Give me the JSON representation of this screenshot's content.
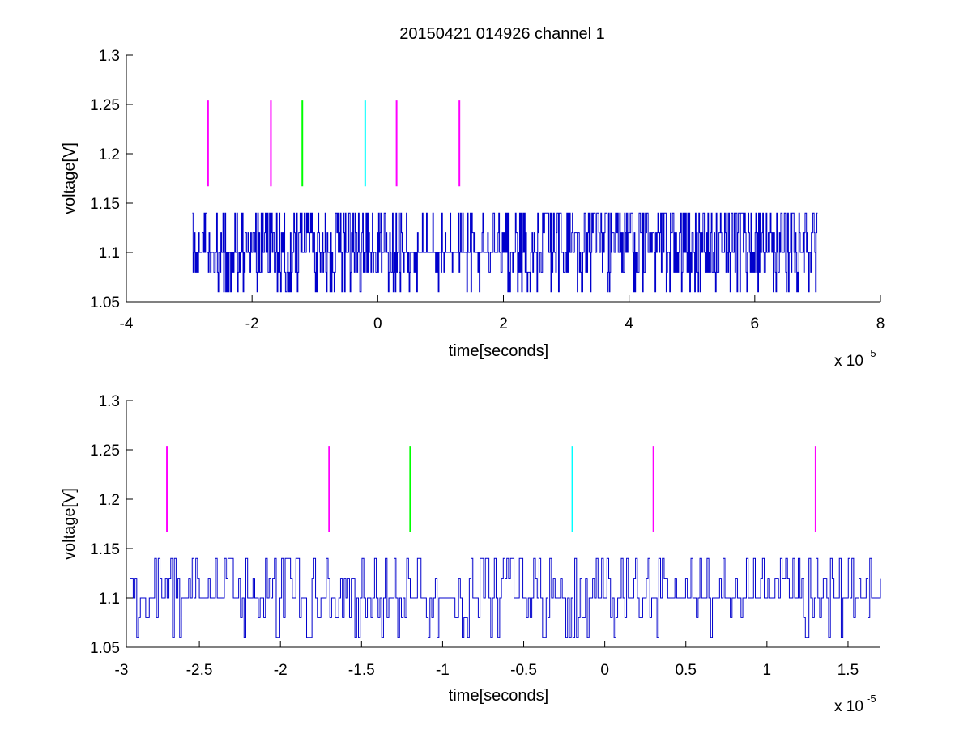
{
  "figure": {
    "title": "20150421 014926 channel 1"
  },
  "colors": {
    "signal": "#0000cc",
    "magenta": "#ff00ff",
    "green": "#00ff00",
    "cyan": "#00ffff",
    "axis": "#000000"
  },
  "chart_data": [
    {
      "type": "line",
      "title": "20150421 014926 channel 1",
      "xlabel": "time[seconds]",
      "ylabel": "voltage[V]",
      "x_multiplier_label": "x 10",
      "x_multiplier_exponent": "-5",
      "xlim": [
        -4,
        8
      ],
      "ylim": [
        1.05,
        1.3
      ],
      "xticks": [
        -4,
        -2,
        0,
        2,
        4,
        6,
        8
      ],
      "xtick_labels": [
        "-4",
        "-2",
        "0",
        "2",
        "4",
        "6",
        "8"
      ],
      "yticks": [
        1.05,
        1.1,
        1.15,
        1.2,
        1.25,
        1.3
      ],
      "ytick_labels": [
        "1.05",
        "1.1",
        "1.15",
        "1.2",
        "1.25",
        "1.3"
      ],
      "grid": false,
      "markers": [
        {
          "x": -2.7,
          "color": "magenta",
          "ymin": 1.167,
          "ymax": 1.254
        },
        {
          "x": -1.7,
          "color": "magenta",
          "ymin": 1.167,
          "ymax": 1.254
        },
        {
          "x": -1.2,
          "color": "green",
          "ymin": 1.167,
          "ymax": 1.254
        },
        {
          "x": -0.2,
          "color": "cyan",
          "ymin": 1.167,
          "ymax": 1.254
        },
        {
          "x": 0.3,
          "color": "magenta",
          "ymin": 1.167,
          "ymax": 1.254
        },
        {
          "x": 1.3,
          "color": "magenta",
          "ymin": 1.167,
          "ymax": 1.254
        }
      ],
      "signal": {
        "x_start": -2.95,
        "x_end": 7.0,
        "levels": [
          1.06,
          1.08,
          1.1,
          1.12,
          1.14
        ],
        "baseline": 1.1,
        "segments": [
          {
            "x_from": -2.95,
            "x_to": -2.2,
            "activity": 0.55
          },
          {
            "x_from": -2.2,
            "x_to": 0.6,
            "activity": 0.75
          },
          {
            "x_from": 0.6,
            "x_to": 1.0,
            "activity": 0.25
          },
          {
            "x_from": 1.0,
            "x_to": 2.2,
            "activity": 0.45
          },
          {
            "x_from": 2.2,
            "x_to": 7.0,
            "activity": 0.8
          }
        ]
      }
    },
    {
      "type": "line",
      "title": "",
      "xlabel": "time[seconds]",
      "ylabel": "voltage[V]",
      "x_multiplier_label": "x 10",
      "x_multiplier_exponent": "-5",
      "xlim": [
        -2.95,
        1.7
      ],
      "ylim": [
        1.05,
        1.3
      ],
      "xticks": [
        -3,
        -2.5,
        -2,
        -1.5,
        -1,
        -0.5,
        0,
        0.5,
        1,
        1.5
      ],
      "xtick_labels": [
        "-3",
        "-2.5",
        "-2",
        "-1.5",
        "-1",
        "-0.5",
        "0",
        "0.5",
        "1",
        "1.5"
      ],
      "yticks": [
        1.05,
        1.1,
        1.15,
        1.2,
        1.25,
        1.3
      ],
      "ytick_labels": [
        "1.05",
        "1.1",
        "1.15",
        "1.2",
        "1.25",
        "1.3"
      ],
      "grid": false,
      "markers": [
        {
          "x": -2.7,
          "color": "magenta",
          "ymin": 1.167,
          "ymax": 1.254
        },
        {
          "x": -1.7,
          "color": "magenta",
          "ymin": 1.167,
          "ymax": 1.254
        },
        {
          "x": -1.2,
          "color": "green",
          "ymin": 1.167,
          "ymax": 1.254
        },
        {
          "x": -0.2,
          "color": "cyan",
          "ymin": 1.167,
          "ymax": 1.254
        },
        {
          "x": 0.3,
          "color": "magenta",
          "ymin": 1.167,
          "ymax": 1.254
        },
        {
          "x": 1.3,
          "color": "magenta",
          "ymin": 1.167,
          "ymax": 1.254
        }
      ],
      "signal": {
        "x_start": -2.93,
        "x_end": 1.7,
        "levels": [
          1.06,
          1.08,
          1.1,
          1.12,
          1.14
        ],
        "baseline": 1.1,
        "segments": [
          {
            "x_from": -2.93,
            "x_to": -1.4,
            "activity": 0.6
          },
          {
            "x_from": -1.4,
            "x_to": -0.9,
            "activity": 0.45
          },
          {
            "x_from": -0.9,
            "x_to": 0.3,
            "activity": 0.5
          },
          {
            "x_from": 0.3,
            "x_to": 0.65,
            "activity": 0.55
          },
          {
            "x_from": 0.65,
            "x_to": 0.9,
            "activity": 0.15
          },
          {
            "x_from": 0.9,
            "x_to": 1.7,
            "activity": 0.55
          }
        ]
      }
    }
  ]
}
